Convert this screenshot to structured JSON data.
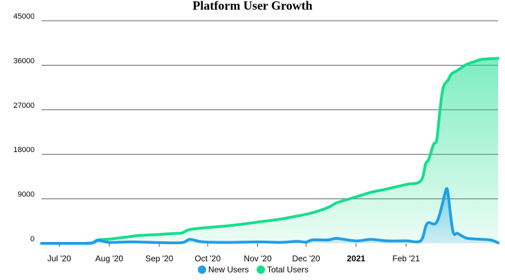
{
  "chart_data": {
    "type": "area",
    "title": "Platform User Growth",
    "xlabel": "",
    "ylabel": "",
    "ylim": [
      0,
      45000
    ],
    "yticks": [
      0,
      9000,
      18000,
      27000,
      36000,
      45000
    ],
    "grid": true,
    "legend_placement": "bottom",
    "x_tick_labels": [
      {
        "date": "2020-07-01",
        "label": "Jul '20",
        "bold": false
      },
      {
        "date": "2020-08-01",
        "label": "Aug '20",
        "bold": false
      },
      {
        "date": "2020-09-01",
        "label": "Sep '20",
        "bold": false
      },
      {
        "date": "2020-10-01",
        "label": "Oct '20",
        "bold": false
      },
      {
        "date": "2020-11-01",
        "label": "Nov '20",
        "bold": false
      },
      {
        "date": "2020-12-01",
        "label": "Dec '20",
        "bold": false
      },
      {
        "date": "2021-01-01",
        "label": "2021",
        "bold": true
      },
      {
        "date": "2021-02-01",
        "label": "Feb '21",
        "bold": false
      }
    ],
    "xlim": [
      "2020-06-20",
      "2021-03-30"
    ],
    "series": [
      {
        "name": "Total Users",
        "color": "#14de8c",
        "points": [
          [
            "2020-06-20",
            0
          ],
          [
            "2020-07-01",
            0
          ],
          [
            "2020-07-15",
            0
          ],
          [
            "2020-07-21",
            100
          ],
          [
            "2020-07-25",
            700
          ],
          [
            "2020-08-01",
            850
          ],
          [
            "2020-08-10",
            1200
          ],
          [
            "2020-08-20",
            1600
          ],
          [
            "2020-09-01",
            1800
          ],
          [
            "2020-09-10",
            2000
          ],
          [
            "2020-09-15",
            2100
          ],
          [
            "2020-09-20",
            2800
          ],
          [
            "2020-10-01",
            3200
          ],
          [
            "2020-10-15",
            3600
          ],
          [
            "2020-11-01",
            4300
          ],
          [
            "2020-11-15",
            4900
          ],
          [
            "2020-11-25",
            5500
          ],
          [
            "2020-12-05",
            6200
          ],
          [
            "2020-12-15",
            7300
          ],
          [
            "2020-12-20",
            8200
          ],
          [
            "2021-01-01",
            9400
          ],
          [
            "2021-01-10",
            10300
          ],
          [
            "2021-01-20",
            11000
          ],
          [
            "2021-02-01",
            11900
          ],
          [
            "2021-02-10",
            12600
          ],
          [
            "2021-02-13",
            16000
          ],
          [
            "2021-02-15",
            17000
          ],
          [
            "2021-02-18",
            20000
          ],
          [
            "2021-02-20",
            21000
          ],
          [
            "2021-02-22",
            27000
          ],
          [
            "2021-02-24",
            31500
          ],
          [
            "2021-02-27",
            33000
          ],
          [
            "2021-03-01",
            34200
          ],
          [
            "2021-03-05",
            35000
          ],
          [
            "2021-03-10",
            36100
          ],
          [
            "2021-03-15",
            36700
          ],
          [
            "2021-03-20",
            37200
          ],
          [
            "2021-03-30",
            37400
          ]
        ]
      },
      {
        "name": "New Users",
        "color": "#1f9fe6",
        "points": [
          [
            "2020-06-20",
            0
          ],
          [
            "2020-07-01",
            0
          ],
          [
            "2020-07-20",
            0
          ],
          [
            "2020-07-25",
            600
          ],
          [
            "2020-08-01",
            200
          ],
          [
            "2020-08-15",
            300
          ],
          [
            "2020-09-01",
            150
          ],
          [
            "2020-09-15",
            150
          ],
          [
            "2020-09-20",
            800
          ],
          [
            "2020-09-28",
            300
          ],
          [
            "2020-10-15",
            200
          ],
          [
            "2020-11-01",
            300
          ],
          [
            "2020-11-15",
            200
          ],
          [
            "2020-11-25",
            400
          ],
          [
            "2020-12-01",
            250
          ],
          [
            "2020-12-05",
            700
          ],
          [
            "2020-12-15",
            700
          ],
          [
            "2020-12-20",
            1000
          ],
          [
            "2021-01-01",
            500
          ],
          [
            "2021-01-10",
            800
          ],
          [
            "2021-01-20",
            500
          ],
          [
            "2021-02-01",
            500
          ],
          [
            "2021-02-10",
            500
          ],
          [
            "2021-02-14",
            4000
          ],
          [
            "2021-02-20",
            4300
          ],
          [
            "2021-02-25",
            10000
          ],
          [
            "2021-02-26",
            11000
          ],
          [
            "2021-02-27",
            10000
          ],
          [
            "2021-03-02",
            2500
          ],
          [
            "2021-03-05",
            2000
          ],
          [
            "2021-03-10",
            1100
          ],
          [
            "2021-03-15",
            900
          ],
          [
            "2021-03-25",
            700
          ],
          [
            "2021-03-30",
            100
          ]
        ]
      }
    ],
    "legend": [
      {
        "name": "New Users",
        "color": "#1f9fe6"
      },
      {
        "name": "Total Users",
        "color": "#14de8c"
      }
    ]
  }
}
